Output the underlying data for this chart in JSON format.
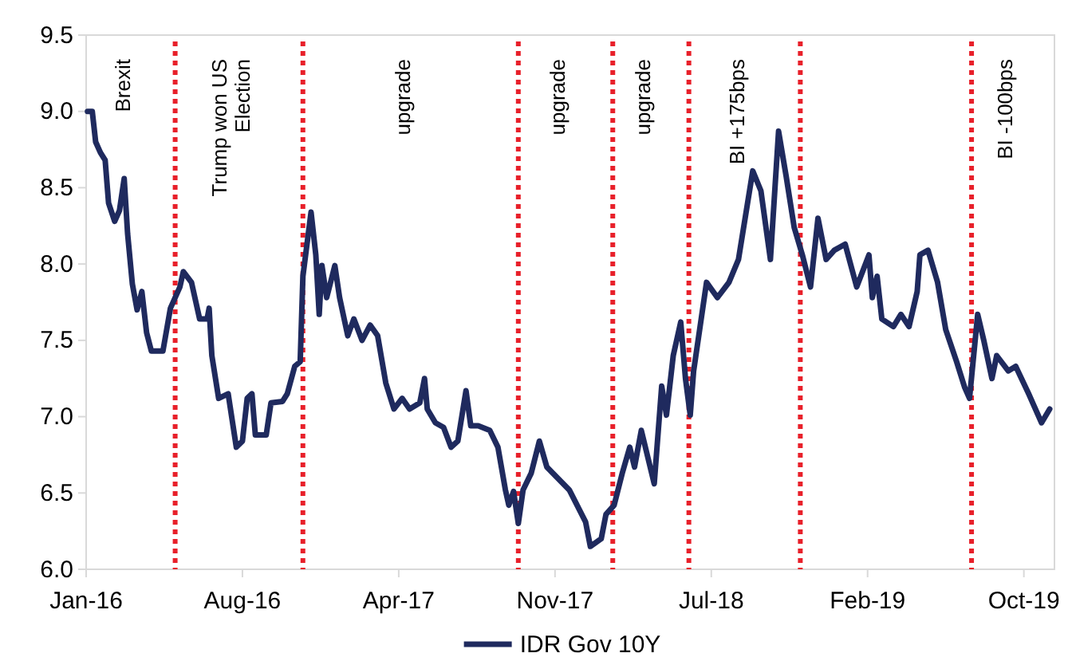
{
  "chart_data": {
    "type": "line",
    "x": [
      "2016-01-06",
      "2016-01-13",
      "2016-01-18",
      "2016-01-25",
      "2016-02-01",
      "2016-02-06",
      "2016-02-15",
      "2016-02-22",
      "2016-02-29",
      "2016-03-05",
      "2016-03-12",
      "2016-03-19",
      "2016-03-26",
      "2016-04-02",
      "2016-04-09",
      "2016-04-26",
      "2016-05-07",
      "2016-05-21",
      "2016-05-26",
      "2016-06-07",
      "2016-06-19",
      "2016-06-30",
      "2016-07-03",
      "2016-07-07",
      "2016-07-17",
      "2016-07-31",
      "2016-08-12",
      "2016-08-21",
      "2016-08-28",
      "2016-09-04",
      "2016-09-09",
      "2016-09-25",
      "2016-10-02",
      "2016-10-19",
      "2016-10-26",
      "2016-11-06",
      "2016-11-14",
      "2016-11-18",
      "2016-11-30",
      "2016-12-07",
      "2016-12-12",
      "2016-12-16",
      "2016-12-23",
      "2017-01-04",
      "2017-01-11",
      "2017-01-23",
      "2017-02-01",
      "2017-02-13",
      "2017-02-25",
      "2017-03-08",
      "2017-03-20",
      "2017-04-01",
      "2017-04-13",
      "2017-04-24",
      "2017-05-09",
      "2017-05-16",
      "2017-05-20",
      "2017-06-01",
      "2017-06-13",
      "2017-06-24",
      "2017-07-04",
      "2017-07-16",
      "2017-07-23",
      "2017-08-03",
      "2017-08-20",
      "2017-09-01",
      "2017-09-12",
      "2017-09-17",
      "2017-09-24",
      "2017-10-01",
      "2017-10-08",
      "2017-10-20",
      "2017-11-01",
      "2017-11-12",
      "2017-12-15",
      "2018-01-08",
      "2018-01-15",
      "2018-01-31",
      "2018-02-07",
      "2018-02-19",
      "2018-03-03",
      "2018-03-14",
      "2018-03-21",
      "2018-03-31",
      "2018-04-19",
      "2018-04-30",
      "2018-05-07",
      "2018-05-17",
      "2018-05-28",
      "2018-06-04",
      "2018-06-11",
      "2018-06-16",
      "2018-07-05",
      "2018-07-21",
      "2018-08-07",
      "2018-08-21",
      "2018-09-11",
      "2018-09-23",
      "2018-10-07",
      "2018-10-19",
      "2018-10-30",
      "2018-11-11",
      "2018-11-23",
      "2018-12-05",
      "2018-12-16",
      "2018-12-28",
      "2019-01-09",
      "2019-01-25",
      "2019-02-11",
      "2019-03-01",
      "2019-03-06",
      "2019-03-13",
      "2019-03-20",
      "2019-04-06",
      "2019-04-17",
      "2019-04-29",
      "2019-05-11",
      "2019-05-15",
      "2019-05-27",
      "2019-06-10",
      "2019-06-22",
      "2019-07-08",
      "2019-07-20",
      "2019-07-27",
      "2019-08-08",
      "2019-08-17",
      "2019-08-29",
      "2019-09-05",
      "2019-09-22",
      "2019-10-03",
      "2019-10-22",
      "2019-11-10",
      "2019-11-22"
    ],
    "series": [
      {
        "name": "IDR Gov 10Y",
        "color": "#1f2a5e",
        "values": [
          9.0,
          9.0,
          8.8,
          8.73,
          8.68,
          8.4,
          8.28,
          8.35,
          8.56,
          8.2,
          7.87,
          7.7,
          7.82,
          7.55,
          7.43,
          7.43,
          7.71,
          7.85,
          7.95,
          7.88,
          7.64,
          7.64,
          7.71,
          7.4,
          7.12,
          7.15,
          6.8,
          6.84,
          7.12,
          7.15,
          6.88,
          6.88,
          7.09,
          7.1,
          7.15,
          7.33,
          7.36,
          7.92,
          8.34,
          8.06,
          7.67,
          7.99,
          7.78,
          7.99,
          7.78,
          7.53,
          7.64,
          7.5,
          7.6,
          7.53,
          7.22,
          7.05,
          7.12,
          7.05,
          7.09,
          7.25,
          7.05,
          6.96,
          6.93,
          6.8,
          6.84,
          7.17,
          6.94,
          6.94,
          6.91,
          6.8,
          6.52,
          6.42,
          6.51,
          6.3,
          6.52,
          6.63,
          6.84,
          6.67,
          6.52,
          6.31,
          6.15,
          6.2,
          6.36,
          6.42,
          6.63,
          6.8,
          6.67,
          6.91,
          6.56,
          7.2,
          7.01,
          7.4,
          7.62,
          7.25,
          7.01,
          7.3,
          7.88,
          7.78,
          7.88,
          8.03,
          8.61,
          8.48,
          8.03,
          8.87,
          8.58,
          8.24,
          8.06,
          7.85,
          8.3,
          8.03,
          8.09,
          8.13,
          7.85,
          8.06,
          7.78,
          7.92,
          7.64,
          7.59,
          7.67,
          7.59,
          7.82,
          8.06,
          8.09,
          7.88,
          7.57,
          7.36,
          7.19,
          7.12,
          7.67,
          7.5,
          7.25,
          7.4,
          7.3,
          7.33,
          7.15,
          6.96,
          7.05
        ]
      }
    ],
    "xlim": [
      "2016-01-04",
      "2019-11-29"
    ],
    "xticks": [
      {
        "value": "2016-01-04",
        "label": "Jan-16"
      },
      {
        "value": "2016-08-21",
        "label": "Aug-16"
      },
      {
        "value": "2017-04-08",
        "label": "Apr-17"
      },
      {
        "value": "2017-11-24",
        "label": "Nov-17"
      },
      {
        "value": "2018-07-12",
        "label": "Jul-18"
      },
      {
        "value": "2019-02-27",
        "label": "Feb-19"
      },
      {
        "value": "2019-10-15",
        "label": "Oct-19"
      }
    ],
    "ylim": [
      6.0,
      9.5
    ],
    "yticks": [
      {
        "value": 6,
        "label": "6.0"
      },
      {
        "value": 6.5,
        "label": "6.5"
      },
      {
        "value": 7,
        "label": "7.0"
      },
      {
        "value": 7.5,
        "label": "7.5"
      },
      {
        "value": 8,
        "label": "8.0"
      },
      {
        "value": 8.5,
        "label": "8.5"
      },
      {
        "value": 9,
        "label": "9.0"
      },
      {
        "value": 9.5,
        "label": "9.5"
      }
    ],
    "ref_lines": [
      {
        "axis": "x",
        "value": "2016-05-14",
        "color": "#e8202a",
        "line_style": "dotted"
      },
      {
        "axis": "x",
        "value": "2016-11-18",
        "color": "#e8202a",
        "line_style": "dotted"
      },
      {
        "axis": "x",
        "value": "2017-10-01",
        "color": "#e8202a",
        "line_style": "dotted"
      },
      {
        "axis": "x",
        "value": "2018-02-17",
        "color": "#e8202a",
        "line_style": "dotted"
      },
      {
        "axis": "x",
        "value": "2018-06-09",
        "color": "#e8202a",
        "line_style": "dotted"
      },
      {
        "axis": "x",
        "value": "2018-11-20",
        "color": "#e8202a",
        "line_style": "dotted"
      },
      {
        "axis": "x",
        "value": "2019-07-30",
        "color": "#e8202a",
        "line_style": "dotted"
      }
    ],
    "annotations": [
      "Brexit",
      "Trump won US\nElection",
      "upgrade",
      "upgrade",
      "upgrade",
      "BI +175bps",
      "BI -100bps"
    ],
    "grid": false,
    "legend": "bottom",
    "line_style": "solid",
    "marker": "none"
  }
}
